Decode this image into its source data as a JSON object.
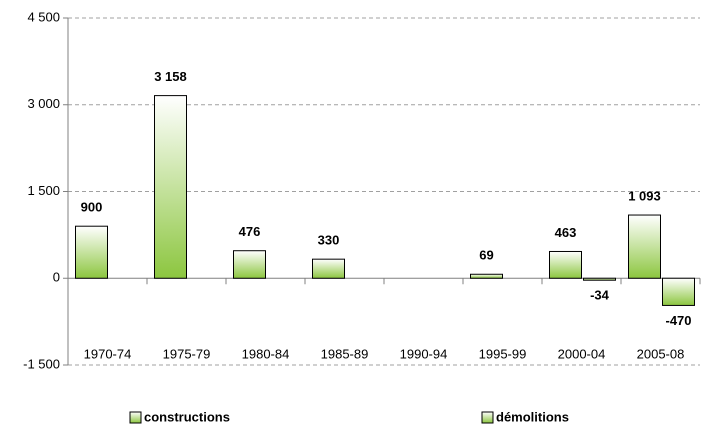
{
  "chart_data": {
    "type": "bar",
    "categories": [
      "1970-74",
      "1975-79",
      "1980-84",
      "1985-89",
      "1990-94",
      "1995-99",
      "2000-04",
      "2005-08"
    ],
    "series": [
      {
        "name": "constructions",
        "color": "#8cc63f",
        "values": [
          900,
          3158,
          476,
          330,
          null,
          69,
          463,
          1093
        ],
        "value_labels": [
          "900",
          "3 158",
          "476",
          "330",
          null,
          "69",
          "463",
          "1 093"
        ]
      },
      {
        "name": "démolitions",
        "color": "#8cc63f",
        "values": [
          null,
          null,
          null,
          null,
          null,
          null,
          -34,
          -470
        ],
        "value_labels": [
          null,
          null,
          null,
          null,
          null,
          null,
          "-34",
          "-470"
        ]
      }
    ],
    "ylim": [
      -1500,
      4500
    ],
    "yticks": [
      {
        "value": -1500,
        "label": "-1 500"
      },
      0,
      {
        "value": 1500,
        "label": "1 500"
      },
      {
        "value": 3000,
        "label": "3 000"
      },
      {
        "value": 4500,
        "label": "4 500"
      }
    ],
    "grid": true,
    "legend": "bottom"
  }
}
